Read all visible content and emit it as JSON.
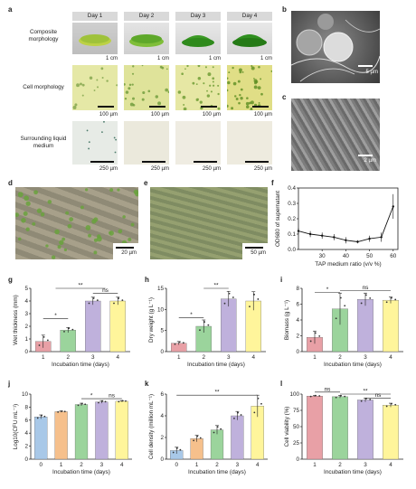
{
  "panel_labels": {
    "a": "a",
    "b": "b",
    "c": "c",
    "d": "d",
    "e": "e",
    "f": "f",
    "g": "g",
    "h": "h",
    "i": "i",
    "j": "j",
    "k": "k",
    "l": "l"
  },
  "panel_a": {
    "days": [
      "Day 1",
      "Day 2",
      "Day 3",
      "Day 4"
    ],
    "rows": [
      {
        "label": "Composite morphology",
        "scale": "1 cm"
      },
      {
        "label": "Cell morphology",
        "scale": "100 µm"
      },
      {
        "label": "Surrounding liquid medium",
        "scale": "250 µm"
      }
    ]
  },
  "panel_b": {
    "scale": "5 µm"
  },
  "panel_c": {
    "scale": "2 µm"
  },
  "panel_d": {
    "scale": "20 µm"
  },
  "panel_e": {
    "scale": "50 µm"
  },
  "colors": {
    "day1": "#e8a0a6",
    "day2": "#9bd49c",
    "day3": "#bfb1dc",
    "day4": "#fff59b",
    "d0": "#a8c8e8",
    "d1": "#f6c08c"
  },
  "chart_data": [
    {
      "id": "f",
      "type": "line",
      "xlabel": "TAP medium ratio (v/v %)",
      "ylabel": "OD680 of supernatant",
      "x": [
        20,
        25,
        30,
        35,
        40,
        45,
        50,
        55,
        60
      ],
      "y": [
        0.12,
        0.1,
        0.09,
        0.08,
        0.06,
        0.05,
        0.07,
        0.08,
        0.28
      ],
      "yerr": [
        0.02,
        0.02,
        0.02,
        0.02,
        0.02,
        0.01,
        0.02,
        0.03,
        0.08
      ],
      "xlim": [
        20,
        62
      ],
      "ylim": [
        0,
        0.4
      ],
      "xticks": [
        30,
        40,
        50,
        60
      ],
      "yticks": [
        0,
        0.1,
        0.2,
        0.3,
        0.4
      ]
    },
    {
      "id": "g",
      "type": "bar",
      "xlabel": "Incubation time (days)",
      "ylabel": "Wet thickness (mm)",
      "categories": [
        "1",
        "2",
        "3",
        "4"
      ],
      "values": [
        0.8,
        1.7,
        4.0,
        4.0
      ],
      "errors": [
        0.5,
        0.2,
        0.3,
        0.3
      ],
      "ylim": [
        0,
        5
      ],
      "yticks": [
        0,
        1,
        2,
        3,
        4,
        5
      ],
      "sig": [
        {
          "label": "*",
          "from": 0,
          "to": 1,
          "level": 2.6
        },
        {
          "label": "ns",
          "from": 2,
          "to": 3,
          "level": 4.6
        },
        {
          "label": "**",
          "from": 0.5,
          "to": 2.5,
          "level": 5.0
        }
      ]
    },
    {
      "id": "h",
      "type": "bar",
      "xlabel": "Incubation time (days)",
      "ylabel": "Dry weight (g L⁻¹)",
      "categories": [
        "1",
        "2",
        "3",
        "4"
      ],
      "values": [
        2.0,
        6.0,
        12.5,
        12.0
      ],
      "errors": [
        0.4,
        1.5,
        1.8,
        2.2
      ],
      "ylim": [
        0,
        15
      ],
      "yticks": [
        0,
        5,
        10,
        15
      ],
      "sig": [
        {
          "label": "*",
          "from": 0,
          "to": 1,
          "level": 8
        },
        {
          "label": "**",
          "from": 1,
          "to": 2,
          "level": 15
        }
      ]
    },
    {
      "id": "i",
      "type": "bar",
      "xlabel": "Incubation time (days)",
      "ylabel": "Biomass (g L⁻¹)",
      "categories": [
        "1",
        "2",
        "3",
        "4"
      ],
      "values": [
        1.8,
        5.4,
        6.6,
        6.5
      ],
      "errors": [
        0.8,
        2.0,
        0.8,
        0.4
      ],
      "ylim": [
        0,
        8
      ],
      "yticks": [
        0,
        2,
        4,
        6,
        8
      ],
      "sig": [
        {
          "label": "*",
          "from": 0,
          "to": 1,
          "level": 7.5
        },
        {
          "label": "ns",
          "from": 1,
          "to": 3,
          "level": 7.7
        }
      ]
    },
    {
      "id": "j",
      "type": "bar",
      "xlabel": "Incubation time (days)",
      "ylabel": "Log10(CFU mL⁻¹)",
      "categories": [
        "0",
        "1",
        "2",
        "3",
        "4"
      ],
      "values": [
        6.5,
        7.3,
        8.4,
        8.8,
        8.9
      ],
      "errors": [
        0.3,
        0.1,
        0.2,
        0.2,
        0.1
      ],
      "ylim": [
        0,
        10
      ],
      "yticks": [
        0,
        2,
        4,
        6,
        8,
        10
      ],
      "sig": [
        {
          "label": "*",
          "from": 2,
          "to": 3,
          "level": 9.3
        },
        {
          "label": "ns",
          "from": 3,
          "to": 4,
          "level": 9.3
        }
      ]
    },
    {
      "id": "k",
      "type": "bar",
      "xlabel": "Incubation time (days)",
      "ylabel": "Cell density (million mL⁻¹)",
      "categories": [
        "0",
        "1",
        "2",
        "3",
        "4"
      ],
      "values": [
        0.8,
        1.9,
        2.7,
        4.0,
        4.9
      ],
      "errors": [
        0.3,
        0.3,
        0.4,
        0.4,
        1.0
      ],
      "ylim": [
        0,
        6
      ],
      "yticks": [
        0,
        2,
        4,
        6
      ],
      "sig": [
        {
          "label": "**",
          "from": 0,
          "to": 4,
          "level": 5.9
        }
      ]
    },
    {
      "id": "l",
      "type": "bar",
      "xlabel": "Incubation time (days)",
      "ylabel": "Cell viability (%)",
      "categories": [
        "1",
        "2",
        "3",
        "4"
      ],
      "values": [
        97,
        96,
        91,
        83
      ],
      "errors": [
        1,
        2,
        3,
        3
      ],
      "ylim": [
        0,
        100
      ],
      "yticks": [
        0,
        25,
        50,
        75,
        100
      ],
      "sig": [
        {
          "label": "ns",
          "from": 0,
          "to": 1,
          "level": 103
        },
        {
          "label": "ns",
          "from": 2,
          "to": 3,
          "level": 94
        },
        {
          "label": "**",
          "from": 1,
          "to": 3,
          "level": 100
        }
      ]
    }
  ]
}
